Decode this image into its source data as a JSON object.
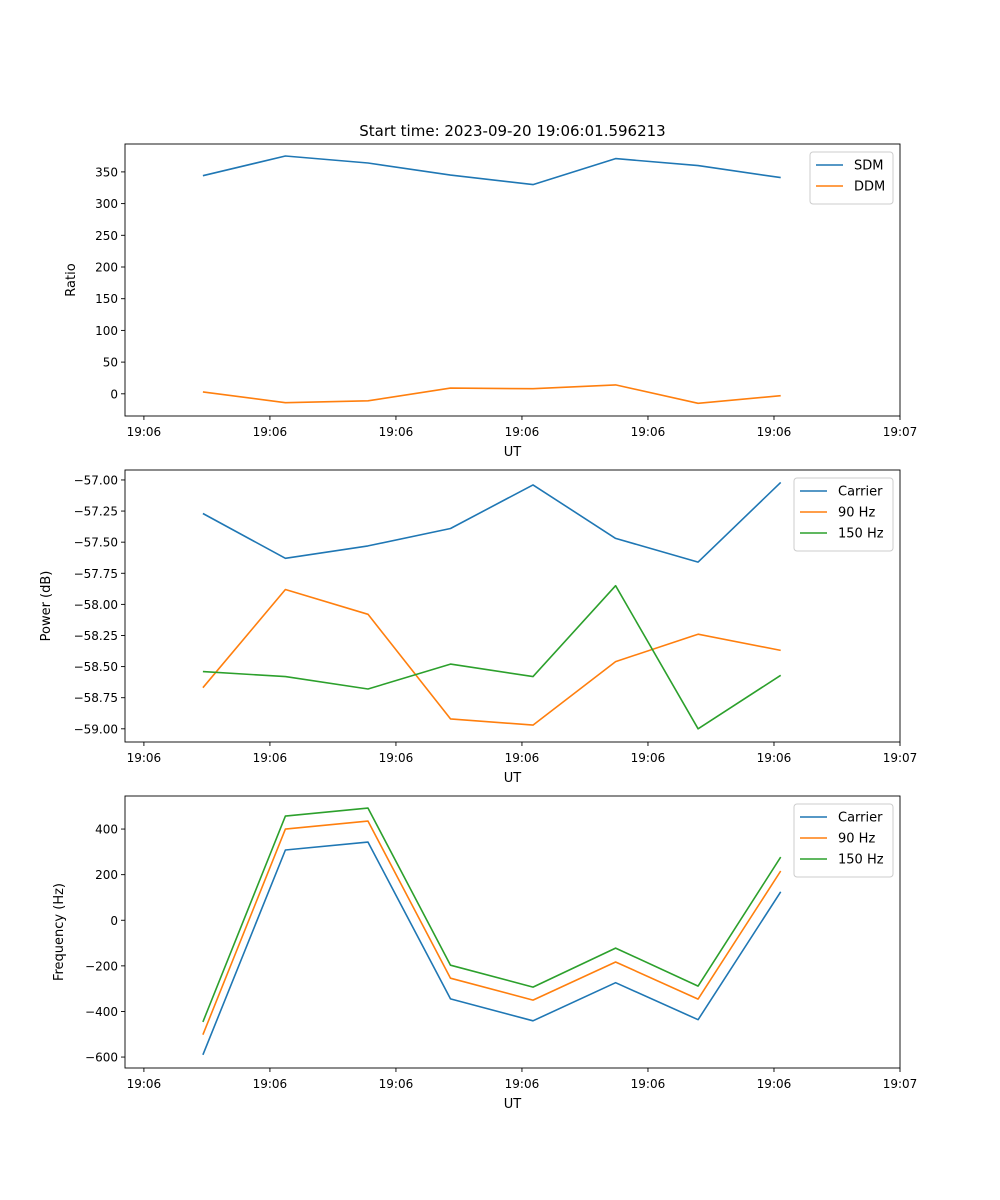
{
  "chart_data": [
    {
      "type": "line",
      "title": "Start time: 2023-09-20 19:06:01.596213",
      "xlabel": "UT",
      "ylabel": "Ratio",
      "x_units": "tick index (each tick labeled by time)",
      "xlim": [
        -0.15,
        6.0
      ],
      "xticks": [
        0,
        1,
        2,
        3,
        4,
        5,
        6
      ],
      "xtick_labels": [
        "19:06",
        "19:06",
        "19:06",
        "19:06",
        "19:06",
        "19:06",
        "19:07"
      ],
      "ylim": [
        -35,
        394
      ],
      "yticks": [
        0,
        50,
        100,
        150,
        200,
        250,
        300,
        350
      ],
      "ytick_labels": [
        "0",
        "50",
        "100",
        "150",
        "200",
        "250",
        "300",
        "350"
      ],
      "legend_position": "top-right",
      "x": [
        0.468,
        1.123,
        1.778,
        2.433,
        3.088,
        3.743,
        4.398,
        5.053
      ],
      "series": [
        {
          "name": "SDM",
          "color": "#1f77b4",
          "values": [
            344,
            375,
            364,
            345,
            330,
            371,
            360,
            341
          ]
        },
        {
          "name": "DDM",
          "color": "#ff7f0e",
          "values": [
            3,
            -14,
            -11,
            9,
            8,
            14,
            -15,
            -3
          ]
        }
      ]
    },
    {
      "type": "line",
      "xlabel": "UT",
      "ylabel": "Power (dB)",
      "xlim": [
        -0.15,
        6.0
      ],
      "xticks": [
        0,
        1,
        2,
        3,
        4,
        5,
        6
      ],
      "xtick_labels": [
        "19:06",
        "19:06",
        "19:06",
        "19:06",
        "19:06",
        "19:06",
        "19:07"
      ],
      "ylim": [
        -59.106,
        -56.92
      ],
      "yticks": [
        -59.0,
        -58.75,
        -58.5,
        -58.25,
        -58.0,
        -57.75,
        -57.5,
        -57.25,
        -57.0
      ],
      "ytick_labels": [
        "−59.00",
        "−58.75",
        "−58.50",
        "−58.25",
        "−58.00",
        "−57.75",
        "−57.50",
        "−57.25",
        "−57.00"
      ],
      "legend_position": "top-right",
      "x": [
        0.468,
        1.123,
        1.778,
        2.433,
        3.088,
        3.743,
        4.398,
        5.053
      ],
      "series": [
        {
          "name": "Carrier",
          "color": "#1f77b4",
          "values": [
            -57.27,
            -57.63,
            -57.53,
            -57.39,
            -57.04,
            -57.47,
            -57.66,
            -57.02
          ]
        },
        {
          "name": "90 Hz",
          "color": "#ff7f0e",
          "values": [
            -58.67,
            -57.88,
            -58.08,
            -58.92,
            -58.97,
            -58.46,
            -58.24,
            -58.37
          ]
        },
        {
          "name": "150 Hz",
          "color": "#2ca02c",
          "values": [
            -58.54,
            -58.58,
            -58.68,
            -58.48,
            -58.58,
            -57.85,
            -59.0,
            -58.57
          ]
        }
      ]
    },
    {
      "type": "line",
      "xlabel": "UT",
      "ylabel": "Frequency (Hz)",
      "xlim": [
        -0.15,
        6.0
      ],
      "xticks": [
        0,
        1,
        2,
        3,
        4,
        5,
        6
      ],
      "xtick_labels": [
        "19:06",
        "19:06",
        "19:06",
        "19:06",
        "19:06",
        "19:06",
        "19:07"
      ],
      "ylim": [
        -648,
        545
      ],
      "yticks": [
        -600,
        -400,
        -200,
        0,
        200,
        400
      ],
      "ytick_labels": [
        "−600",
        "−400",
        "−200",
        "0",
        "200",
        "400"
      ],
      "legend_position": "top-right",
      "x": [
        0.468,
        1.123,
        1.778,
        2.433,
        3.088,
        3.743,
        4.398,
        5.053
      ],
      "series": [
        {
          "name": "Carrier",
          "color": "#1f77b4",
          "values": [
            -590,
            308,
            343,
            -345,
            -441,
            -274,
            -436,
            125
          ]
        },
        {
          "name": "90 Hz",
          "color": "#ff7f0e",
          "values": [
            -502,
            400,
            435,
            -254,
            -350,
            -183,
            -346,
            216
          ]
        },
        {
          "name": "150 Hz",
          "color": "#2ca02c",
          "values": [
            -446,
            457,
            492,
            -197,
            -293,
            -122,
            -289,
            277
          ]
        }
      ]
    }
  ]
}
